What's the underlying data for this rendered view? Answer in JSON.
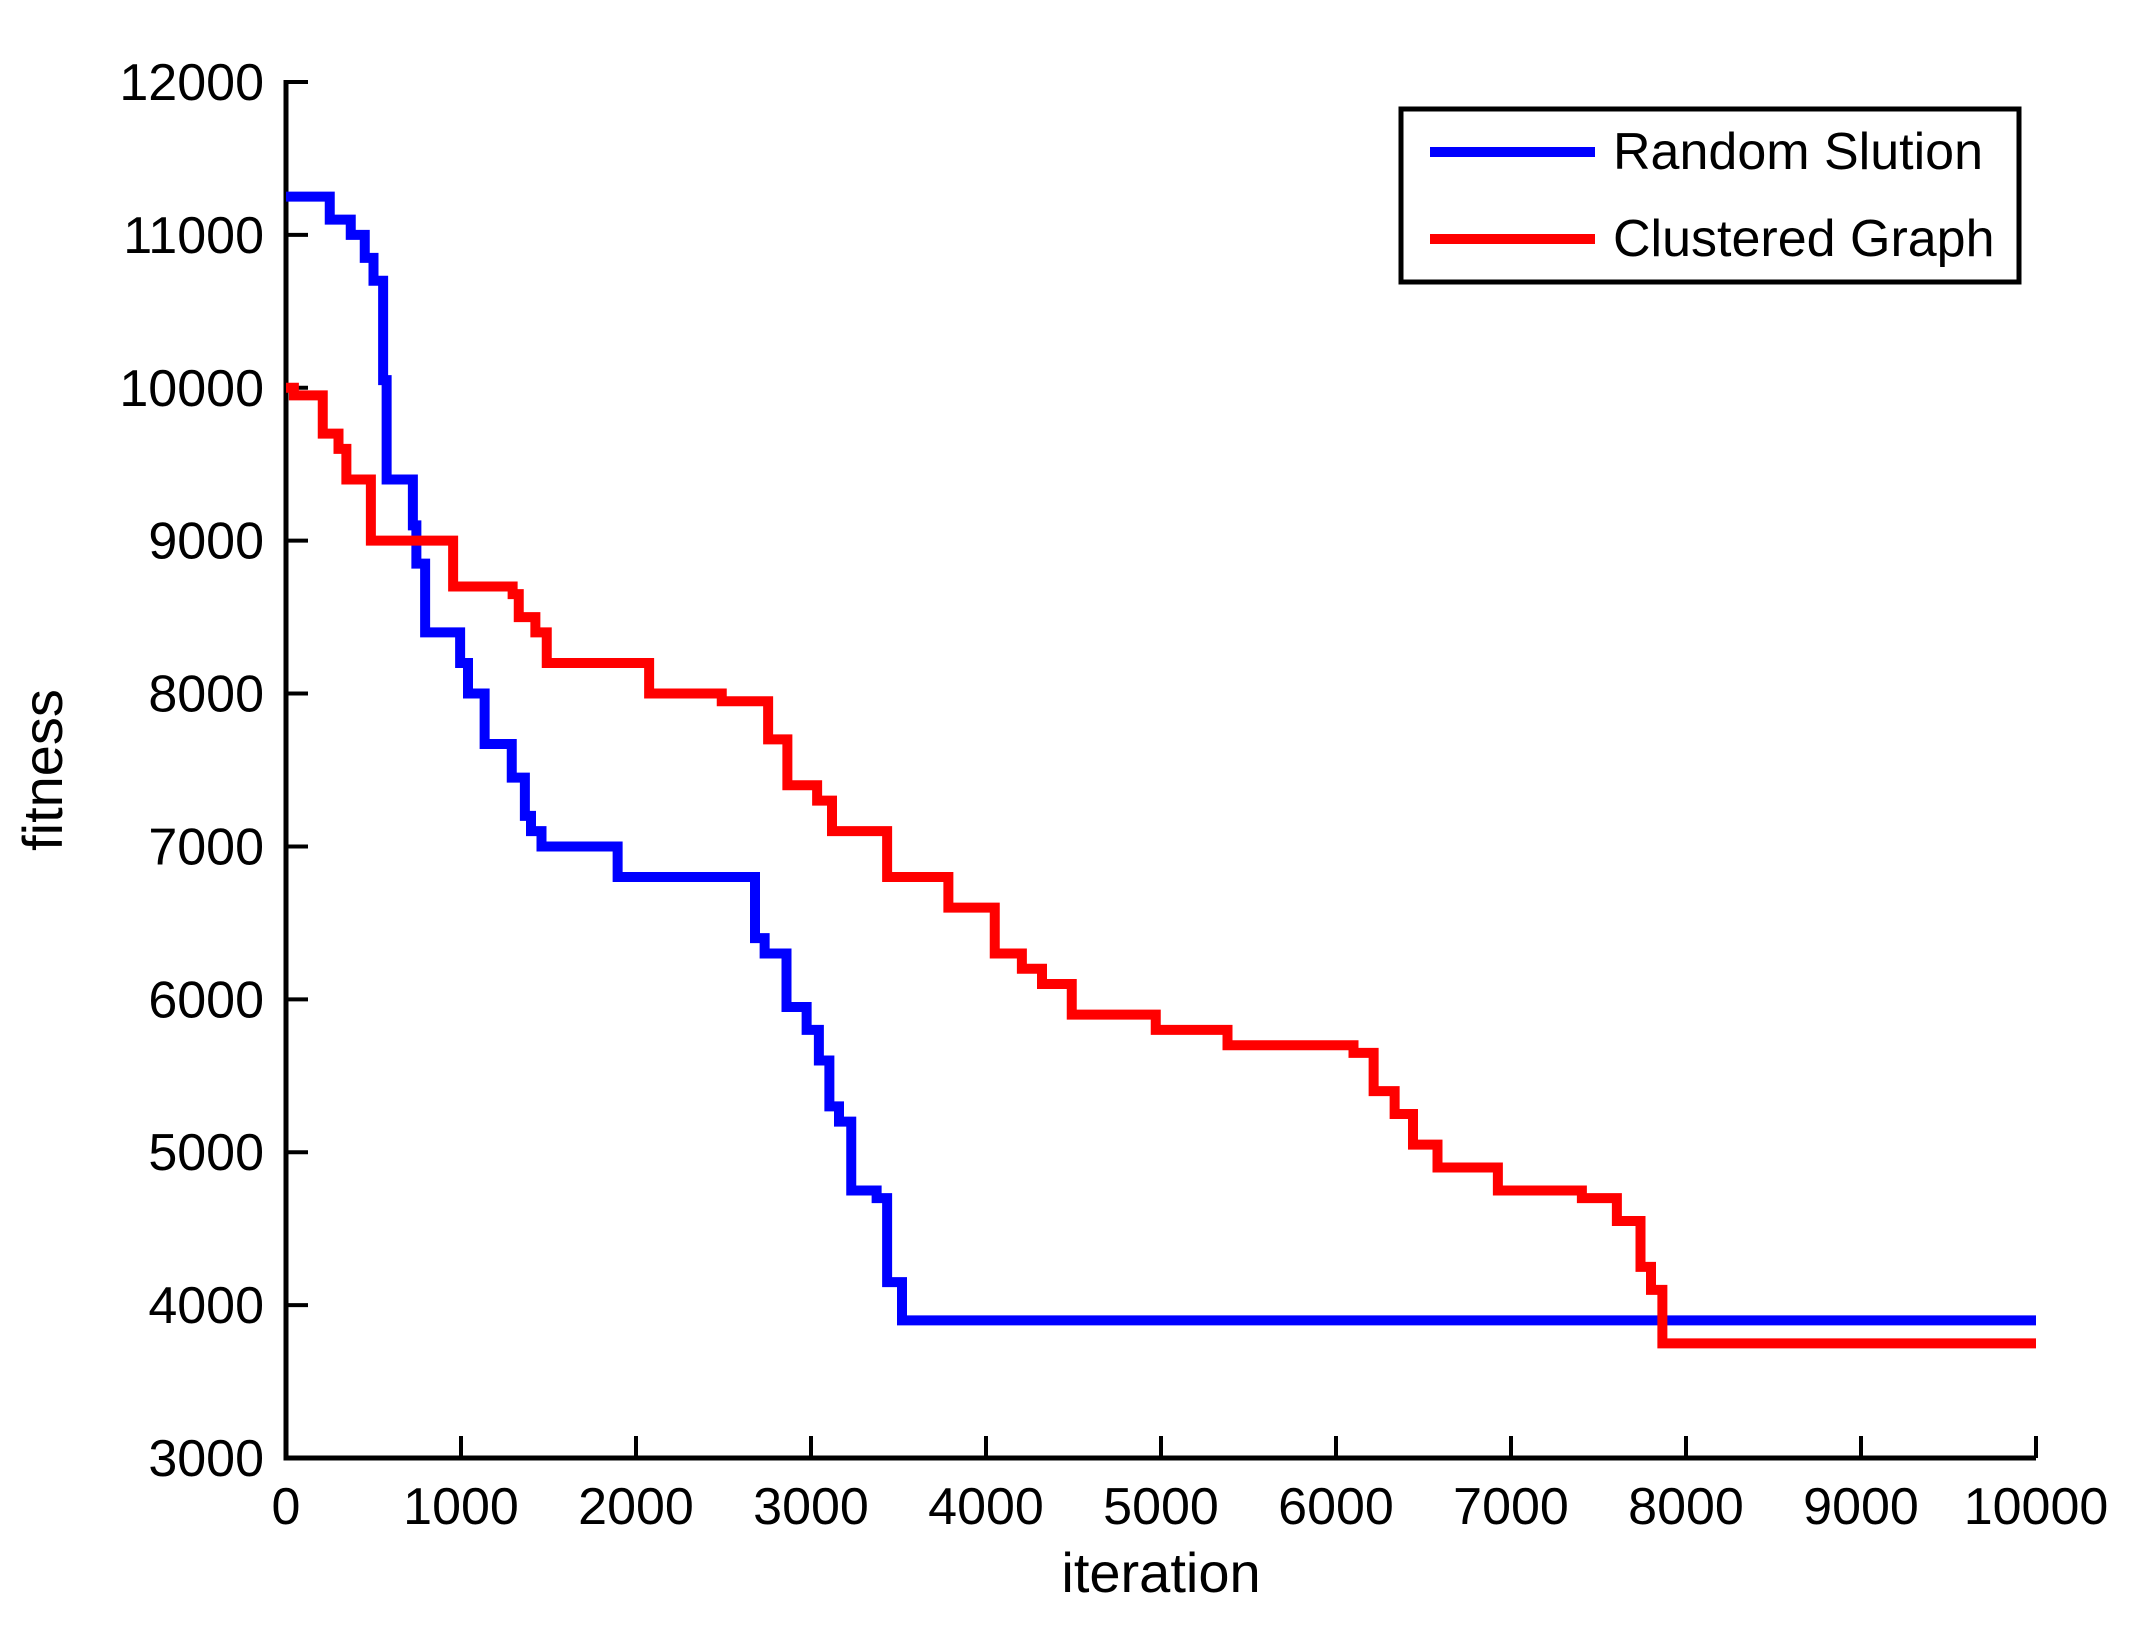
{
  "figure": {
    "background": "#ffffff",
    "axis_color": "#000000"
  },
  "chart_data": {
    "type": "line",
    "subtype": "step-post",
    "title": "",
    "xlabel": "iteration",
    "ylabel": "fitness",
    "xlim": [
      0,
      10000
    ],
    "ylim": [
      3000,
      12000
    ],
    "x_ticks": [
      0,
      1000,
      2000,
      3000,
      4000,
      5000,
      6000,
      7000,
      8000,
      9000,
      10000
    ],
    "y_ticks": [
      3000,
      4000,
      5000,
      6000,
      7000,
      8000,
      9000,
      10000,
      11000,
      12000
    ],
    "grid": false,
    "legend": {
      "position": "top-right",
      "border_color": "#000000",
      "entries": [
        {
          "label": "Random Slution",
          "color": "#0000ff"
        },
        {
          "label": "Clustered Graph",
          "color": "#ff0000"
        }
      ]
    },
    "series": [
      {
        "name": "Random Slution",
        "color": "#0000ff",
        "points": [
          [
            0,
            11250
          ],
          [
            250,
            11100
          ],
          [
            370,
            11000
          ],
          [
            450,
            10850
          ],
          [
            500,
            10700
          ],
          [
            555,
            10050
          ],
          [
            575,
            9400
          ],
          [
            725,
            9100
          ],
          [
            745,
            8850
          ],
          [
            795,
            8400
          ],
          [
            995,
            8200
          ],
          [
            1040,
            8000
          ],
          [
            1135,
            7670
          ],
          [
            1290,
            7450
          ],
          [
            1365,
            7200
          ],
          [
            1400,
            7100
          ],
          [
            1460,
            7000
          ],
          [
            1895,
            6800
          ],
          [
            2680,
            6400
          ],
          [
            2735,
            6300
          ],
          [
            2860,
            5950
          ],
          [
            2975,
            5800
          ],
          [
            3045,
            5600
          ],
          [
            3105,
            5300
          ],
          [
            3160,
            5200
          ],
          [
            3230,
            4750
          ],
          [
            3375,
            4700
          ],
          [
            3435,
            4150
          ],
          [
            3520,
            3900
          ],
          [
            10000,
            3900
          ]
        ]
      },
      {
        "name": "Clustered Graph",
        "color": "#ff0000",
        "points": [
          [
            0,
            10000
          ],
          [
            45,
            9950
          ],
          [
            210,
            9700
          ],
          [
            300,
            9600
          ],
          [
            345,
            9400
          ],
          [
            485,
            9000
          ],
          [
            955,
            8700
          ],
          [
            1295,
            8650
          ],
          [
            1330,
            8500
          ],
          [
            1425,
            8400
          ],
          [
            1490,
            8200
          ],
          [
            2075,
            8000
          ],
          [
            2490,
            7950
          ],
          [
            2755,
            7700
          ],
          [
            2865,
            7400
          ],
          [
            3035,
            7300
          ],
          [
            3120,
            7100
          ],
          [
            3435,
            6800
          ],
          [
            3785,
            6600
          ],
          [
            4050,
            6300
          ],
          [
            4205,
            6200
          ],
          [
            4320,
            6100
          ],
          [
            4490,
            5900
          ],
          [
            4970,
            5800
          ],
          [
            5380,
            5700
          ],
          [
            6100,
            5650
          ],
          [
            6215,
            5400
          ],
          [
            6335,
            5250
          ],
          [
            6440,
            5050
          ],
          [
            6580,
            4900
          ],
          [
            6925,
            4750
          ],
          [
            7405,
            4700
          ],
          [
            7605,
            4550
          ],
          [
            7740,
            4250
          ],
          [
            7800,
            4100
          ],
          [
            7865,
            3750
          ],
          [
            10000,
            3750
          ]
        ]
      }
    ]
  }
}
